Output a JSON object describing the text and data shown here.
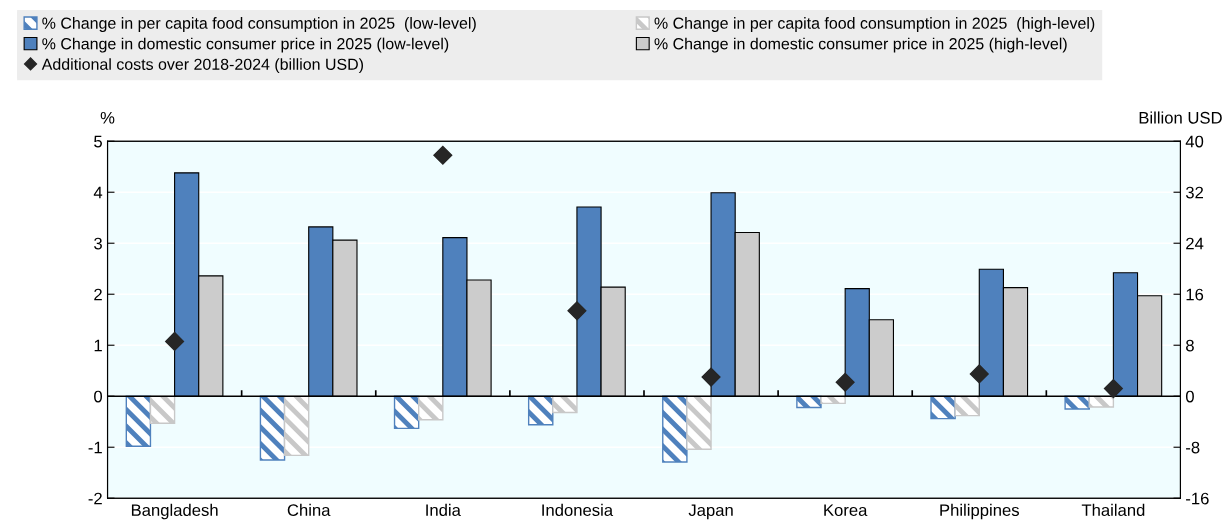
{
  "chart_data": {
    "type": "bar",
    "categories": [
      "Bangladesh",
      "China",
      "India",
      "Indonesia",
      "Japan",
      "Korea",
      "Philippines",
      "Thailand"
    ],
    "ylabel": "%",
    "y2label": "Billion USD",
    "series": [
      {
        "name": "% Change in per capita food consumption in 2025  (low-level)",
        "color": "#4f81bd",
        "values": [
          -0.98,
          -1.25,
          -0.63,
          -0.56,
          -1.29,
          -0.22,
          -0.44,
          -0.25
        ]
      },
      {
        "name": "% Change in per capita food consumption in 2025  (high-level)",
        "color": "#c8c8c8",
        "values": [
          -0.53,
          -1.16,
          -0.46,
          -0.32,
          -1.04,
          -0.14,
          -0.38,
          -0.21
        ]
      },
      {
        "name": "% Change in domestic consumer price in 2025 (low-level)",
        "color": "#4f81bd",
        "values": [
          4.38,
          3.32,
          3.11,
          3.71,
          3.99,
          2.11,
          2.49,
          2.42
        ]
      },
      {
        "name": "% Change in domestic consumer price in 2025 (high-level)",
        "color": "#cccccc",
        "values": [
          2.36,
          3.06,
          2.28,
          2.14,
          3.21,
          1.5,
          2.13,
          1.97
        ]
      },
      {
        "name": "Additional costs over 2018-2024 (billion USD)",
        "type": "scatter",
        "axis": "y2",
        "color": "#262626",
        "values": [
          8.6,
          null,
          37.8,
          13.4,
          3.0,
          2.2,
          3.5,
          1.2
        ]
      }
    ],
    "ylim": [
      -2,
      5
    ],
    "yticks": [
      -2,
      -1,
      0,
      1,
      2,
      3,
      4,
      5
    ],
    "y2lim": [
      -16,
      40
    ],
    "y2ticks": [
      -16,
      -8,
      0,
      8,
      16,
      24,
      32,
      40
    ],
    "grid": "y",
    "legend": "top",
    "marker": "diamond"
  }
}
